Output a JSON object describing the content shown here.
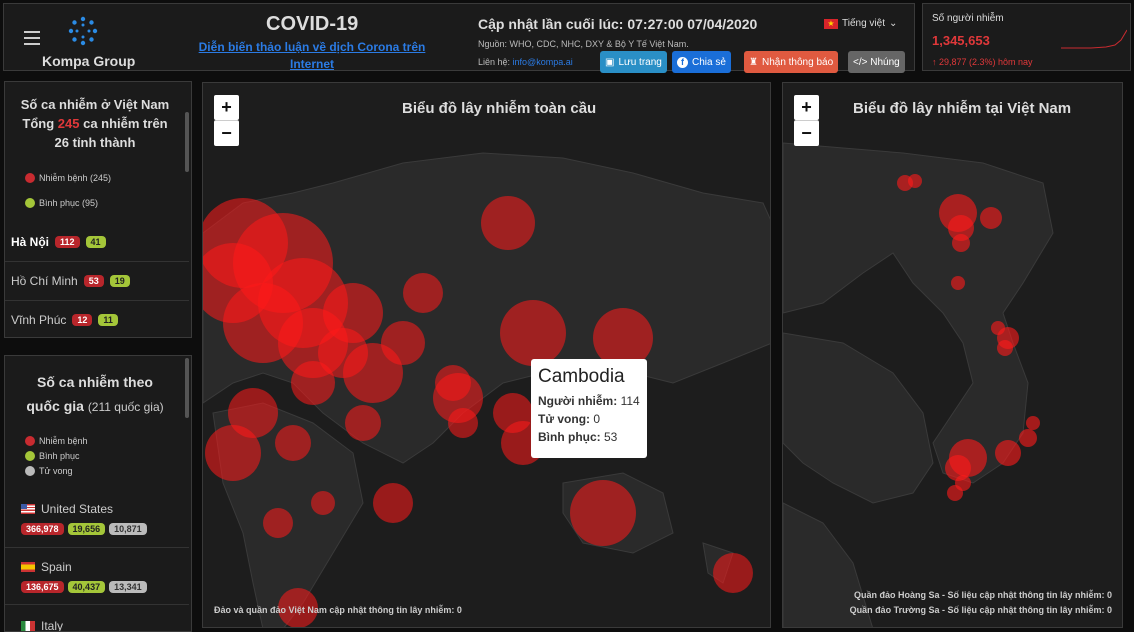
{
  "header": {
    "brand": "Kompa Group",
    "title": "COVID-19",
    "forum_link": "Diễn biến thảo luận về dịch Corona trên Internet",
    "updated": "Cập nhật lần cuối lúc: 07:27:00 07/04/2020",
    "source": "Nguồn: WHO, CDC, NHC, DXY & Bộ Y Tế Việt Nam.",
    "contact_label": "Liên hệ:",
    "contact_email": "info@kompa.ai",
    "language": "Tiếng việt",
    "buttons": {
      "save": "Lưu trang",
      "share": "Chia sẻ",
      "notify": "Nhận thông báo",
      "embed": "</> Nhúng"
    }
  },
  "kpi": {
    "label": "Số người nhiễm",
    "value": "1,345,653",
    "delta": "↑ 29,877 (2.3%) hôm nay"
  },
  "vietnam": {
    "title_line1": "Số ca nhiễm ở Việt Nam",
    "title_pre": "Tổng",
    "total": "245",
    "title_post": "ca nhiễm trên",
    "title_line3": "26 tỉnh thành",
    "legend": {
      "infected": "Nhiễm bệnh (245)",
      "recovered": "Bình phục (95)"
    },
    "provinces": [
      {
        "name": "Hà Nội",
        "infected": "112",
        "recovered": "41"
      },
      {
        "name": "Hồ Chí Minh",
        "infected": "53",
        "recovered": "19"
      },
      {
        "name": "Vĩnh Phúc",
        "infected": "12",
        "recovered": "11"
      }
    ]
  },
  "countries": {
    "title": "Số ca nhiễm theo",
    "title2": "quốc gia",
    "count": "(211 quốc gia)",
    "legend": {
      "infected": "Nhiễm bệnh",
      "recovered": "Bình phục",
      "deaths": "Tử vong"
    },
    "list": [
      {
        "name": "United States",
        "infected": "366,978",
        "recovered": "19,656",
        "deaths": "10,871"
      },
      {
        "name": "Spain",
        "infected": "136,675",
        "recovered": "40,437",
        "deaths": "13,341"
      },
      {
        "name": "Italy"
      }
    ]
  },
  "global_map": {
    "title": "Biểu đồ lây nhiễm toàn cầu",
    "zoom_in": "+",
    "zoom_out": "−",
    "footnote": "Đảo và quần đảo Việt Nam cập nhật thông tin lây nhiễm: 0"
  },
  "tooltip": {
    "name": "Cambodia",
    "infected_label": "Người nhiễm:",
    "infected": "114",
    "deaths_label": "Tử vong:",
    "deaths": "0",
    "recovered_label": "Bình phục:",
    "recovered": "53"
  },
  "vn_map": {
    "title": "Biểu đồ lây nhiễm tại Việt Nam",
    "zoom_in": "+",
    "zoom_out": "−",
    "footnote1": "Quần đảo Hoàng Sa - Số liệu cập nhật thông tin lây nhiễm: 0",
    "footnote2": "Quần đảo Trường Sa - Số liệu cập nhật thông tin lây nhiễm: 0"
  },
  "colors": {
    "infected": "#e0383a",
    "recovered": "#a4c639",
    "deaths": "#bbbbbb",
    "link": "#2b7be4"
  }
}
